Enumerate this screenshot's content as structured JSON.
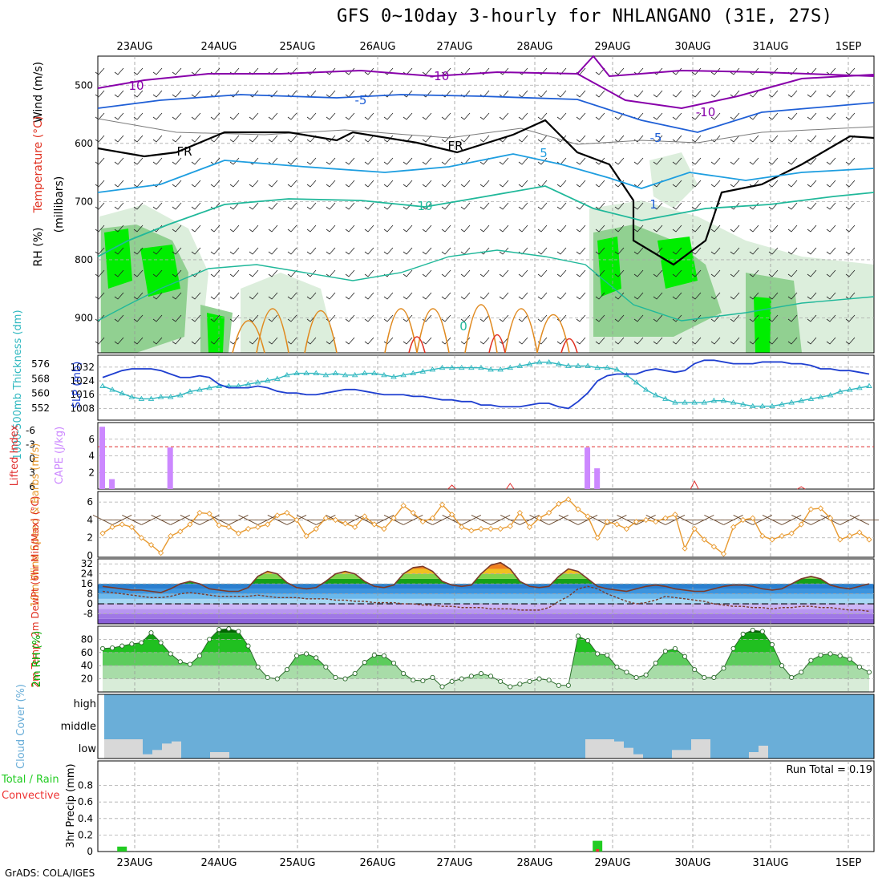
{
  "title": "GFS 0~10day 3-hourly for NHLANGANO (31E, 27S)",
  "footer": "GrADS: COLA/IGES",
  "run_total": "Run Total = 0.19",
  "colors": {
    "wind_upper": "#8800aa",
    "temp_minus5": "#1f5fd6",
    "temp_5": "#1e9ee0",
    "temp_10": "#20b89a",
    "temp_warm": "#e08a20",
    "temp_hot": "#e03020",
    "freezing": "#000000",
    "rh_light": "#d8ecd8",
    "rh_mid": "#88cc88",
    "rh_high": "#00ee00",
    "slp": "#1f3fd0",
    "thickness": "#30b8c0",
    "cape": "#cc88ff",
    "lifted_index": "#e03030",
    "wind10m": "#e89a30",
    "barb": "#6a4a30",
    "rh2m": "#00aa00",
    "cloud": "#6aaed8",
    "cloud_low": "#d8d8d8",
    "precip_total": "#22cc22",
    "precip_conv": "#ee3333"
  },
  "chart_data": [
    {
      "type": "area",
      "panel": "upper_air",
      "ylabel": [
        "Wind (m/s)",
        "Temperature (°C)",
        "RH (%)",
        "(millibars)"
      ],
      "x_dates": [
        "23AUG",
        "24AUG",
        "25AUG",
        "26AUG",
        "27AUG",
        "28AUG",
        "29AUG",
        "30AUG",
        "31AUG",
        "1SEP"
      ],
      "y_ticks": [
        500,
        600,
        700,
        800,
        900
      ],
      "ylim": [
        1000,
        450
      ],
      "contour_labels": [
        "10",
        "-10",
        "-5",
        "FR",
        "FR",
        "-10",
        "-5",
        "5",
        "10",
        "1",
        "0"
      ]
    },
    {
      "type": "line",
      "panel": "thickness_slp",
      "ylabel_left": "1000-500mb Thickness (dm)",
      "ylabel_right": "SLP (mb)",
      "thickness_ticks": [
        552,
        560,
        568,
        576
      ],
      "slp_ticks": [
        1008,
        1016,
        1024,
        1032
      ],
      "series": [
        {
          "name": "SLP (mb)",
          "values": [
            1026,
            1028,
            1030,
            1031,
            1031,
            1031,
            1030,
            1028,
            1026,
            1026,
            1027,
            1026,
            1022,
            1020,
            1020,
            1020,
            1021,
            1020,
            1018,
            1017,
            1017,
            1016,
            1016,
            1017,
            1018,
            1019,
            1019,
            1018,
            1017,
            1016,
            1016,
            1016,
            1015,
            1015,
            1014,
            1013,
            1013,
            1012,
            1012,
            1010,
            1010,
            1009,
            1009,
            1009,
            1010,
            1011,
            1011,
            1009,
            1008,
            1012,
            1017,
            1024,
            1027,
            1028,
            1028,
            1028,
            1030,
            1031,
            1030,
            1029,
            1030,
            1034,
            1036,
            1036,
            1035,
            1034,
            1034,
            1034,
            1035,
            1035,
            1035,
            1034,
            1034,
            1033,
            1031,
            1031,
            1030,
            1030,
            1029,
            1028
          ]
        },
        {
          "name": "1000-500mb Thickness (dm)",
          "values": [
            564,
            562,
            560,
            558,
            557,
            557,
            558,
            558,
            559,
            561,
            562,
            563,
            564,
            564,
            564,
            565,
            566,
            567,
            568,
            570,
            571,
            571,
            571,
            570,
            571,
            570,
            570,
            571,
            571,
            570,
            569,
            570,
            571,
            572,
            573,
            574,
            574,
            574,
            574,
            574,
            573,
            573,
            574,
            575,
            576,
            577,
            577,
            576,
            575,
            575,
            575,
            574,
            574,
            573,
            570,
            566,
            562,
            559,
            557,
            555,
            555,
            555,
            555,
            556,
            556,
            555,
            554,
            553,
            553,
            553,
            554,
            555,
            556,
            557,
            558,
            559,
            561,
            562,
            563,
            564
          ]
        }
      ]
    },
    {
      "type": "bar",
      "panel": "cape_li",
      "ylabel_left": "Lifted Index",
      "ylabel_right": "CAPE (J/kg)",
      "li_ticks": [
        "-6",
        "-3",
        "0",
        "3",
        "6"
      ],
      "cape_ticks": [
        2,
        4,
        6
      ],
      "series": [
        {
          "name": "CAPE (J/kg)",
          "bars": [
            {
              "x": 0,
              "v": 7.5
            },
            {
              "x": 1,
              "v": 1.2
            },
            {
              "x": 7,
              "v": 5.0
            },
            {
              "x": 50,
              "v": 5.0
            },
            {
              "x": 51,
              "v": 2.5
            }
          ]
        }
      ]
    },
    {
      "type": "line",
      "panel": "wind10m",
      "ylabel": "10m Wind Speed & Barbs (m/s)",
      "y_ticks": [
        0,
        2,
        4,
        6
      ],
      "ylim": [
        0,
        7
      ],
      "series": [
        {
          "name": "10m Wind Speed",
          "values": [
            2.5,
            3.2,
            3.5,
            3.2,
            2.0,
            1.2,
            0.3,
            2.2,
            2.7,
            3.5,
            4.8,
            4.7,
            3.4,
            3.2,
            2.5,
            3.0,
            3.2,
            3.5,
            4.5,
            4.8,
            4.0,
            2.2,
            3.0,
            4.2,
            4.0,
            3.6,
            3.2,
            4.4,
            3.5,
            3.0,
            4.2,
            5.6,
            4.8,
            3.8,
            4.2,
            5.7,
            4.6,
            3.2,
            2.8,
            3.0,
            3.0,
            3.0,
            3.3,
            4.8,
            3.2,
            4.2,
            4.8,
            5.8,
            6.3,
            5.2,
            4.4,
            2.0,
            3.8,
            3.5,
            3.0,
            3.8,
            4.0,
            3.8,
            4.2,
            4.6,
            0.8,
            3.0,
            1.8,
            1.0,
            0.2,
            3.2,
            4.0,
            4.2,
            2.2,
            1.8,
            2.2,
            2.5,
            3.5,
            5.2,
            5.3,
            4.2,
            1.8,
            2.2,
            2.6,
            1.8
          ]
        }
      ]
    },
    {
      "type": "area",
      "panel": "temp2m",
      "ylabel": "2m Temp, 2m DewPt (6hr Min/Max) (°C)",
      "y_ticks": [
        -8,
        0,
        8,
        16,
        24,
        32
      ],
      "ylim": [
        -16,
        36
      ],
      "series": [
        {
          "name": "2m Temp",
          "values": [
            14,
            13,
            12,
            11,
            11,
            10,
            9,
            12,
            16,
            18,
            16,
            12,
            11,
            10,
            10,
            13,
            22,
            26,
            24,
            17,
            13,
            12,
            13,
            18,
            24,
            26,
            24,
            18,
            14,
            13,
            15,
            24,
            29,
            30,
            26,
            18,
            15,
            14,
            15,
            24,
            31,
            33,
            28,
            18,
            14,
            13,
            14,
            22,
            28,
            26,
            20,
            14,
            12,
            11,
            10,
            12,
            14,
            15,
            14,
            12,
            11,
            10,
            10,
            12,
            14,
            15,
            15,
            14,
            12,
            11,
            12,
            16,
            20,
            22,
            20,
            15,
            13,
            12,
            14,
            16
          ]
        },
        {
          "name": "2m DewPt",
          "values": [
            10,
            9,
            8,
            7,
            6,
            5,
            5,
            6,
            8,
            9,
            8,
            7,
            6,
            6,
            6,
            6,
            7,
            6,
            5,
            5,
            5,
            4,
            4,
            4,
            3,
            3,
            2,
            2,
            1,
            1,
            1,
            0,
            0,
            -1,
            -1,
            -2,
            -2,
            -3,
            -3,
            -3,
            -4,
            -4,
            -4,
            -5,
            -5,
            -5,
            -3,
            2,
            6,
            12,
            14,
            12,
            8,
            5,
            2,
            0,
            1,
            3,
            6,
            5,
            4,
            3,
            2,
            0,
            -1,
            -2,
            -2,
            -3,
            -3,
            -4,
            -3,
            -3,
            -2,
            -2,
            -3,
            -3,
            -4,
            -5,
            -5,
            -6
          ]
        }
      ]
    },
    {
      "type": "area",
      "panel": "rh2m",
      "ylabel": "2m RH (%)",
      "y_ticks": [
        20,
        40,
        60,
        80
      ],
      "ylim": [
        0,
        100
      ],
      "series": [
        {
          "name": "2m RH",
          "values": [
            66,
            67,
            70,
            73,
            75,
            90,
            75,
            58,
            46,
            42,
            55,
            80,
            95,
            96,
            92,
            70,
            38,
            22,
            20,
            34,
            55,
            58,
            52,
            38,
            22,
            20,
            28,
            45,
            56,
            55,
            44,
            28,
            18,
            17,
            22,
            8,
            16,
            20,
            24,
            28,
            24,
            16,
            8,
            12,
            16,
            20,
            18,
            10,
            10,
            85,
            78,
            58,
            56,
            38,
            30,
            22,
            26,
            44,
            62,
            66,
            54,
            34,
            22,
            22,
            36,
            66,
            88,
            94,
            92,
            72,
            40,
            22,
            30,
            48,
            56,
            58,
            55,
            50,
            38,
            30
          ]
        }
      ]
    },
    {
      "type": "area",
      "panel": "cloud",
      "ylabel": "Cloud Cover (%)",
      "y_tick_labels": [
        "high",
        "middle",
        "low"
      ],
      "series": [
        {
          "name": "low",
          "blocks": [
            [
              0,
              4,
              0.45
            ],
            [
              4,
              5,
              0.1
            ],
            [
              5,
              6,
              0.2
            ],
            [
              6,
              7,
              0.35
            ],
            [
              7,
              8,
              0.4
            ],
            [
              11,
              13,
              0.15
            ],
            [
              50,
              53,
              0.45
            ],
            [
              53,
              54,
              0.4
            ],
            [
              54,
              55,
              0.25
            ],
            [
              55,
              56,
              0.1
            ],
            [
              59,
              61,
              0.2
            ],
            [
              61,
              62,
              0.45
            ],
            [
              62,
              63,
              0.45
            ],
            [
              67,
              68,
              0.15
            ],
            [
              68,
              69,
              0.3
            ]
          ]
        }
      ]
    },
    {
      "type": "bar",
      "panel": "precip",
      "ylabel": "3hr Precip (mm)",
      "legend": [
        "Total / Rain",
        "Convective"
      ],
      "y_ticks": [
        0,
        0.2,
        0.4,
        0.6,
        0.8
      ],
      "ylim": [
        0,
        1
      ],
      "series": [
        {
          "name": "Total / Rain",
          "bars": [
            {
              "x": 2,
              "v": 0.06
            },
            {
              "x": 51,
              "v": 0.13
            }
          ]
        },
        {
          "name": "Convective",
          "bars": [
            {
              "x": 51,
              "v": 0.03
            }
          ]
        }
      ]
    }
  ]
}
